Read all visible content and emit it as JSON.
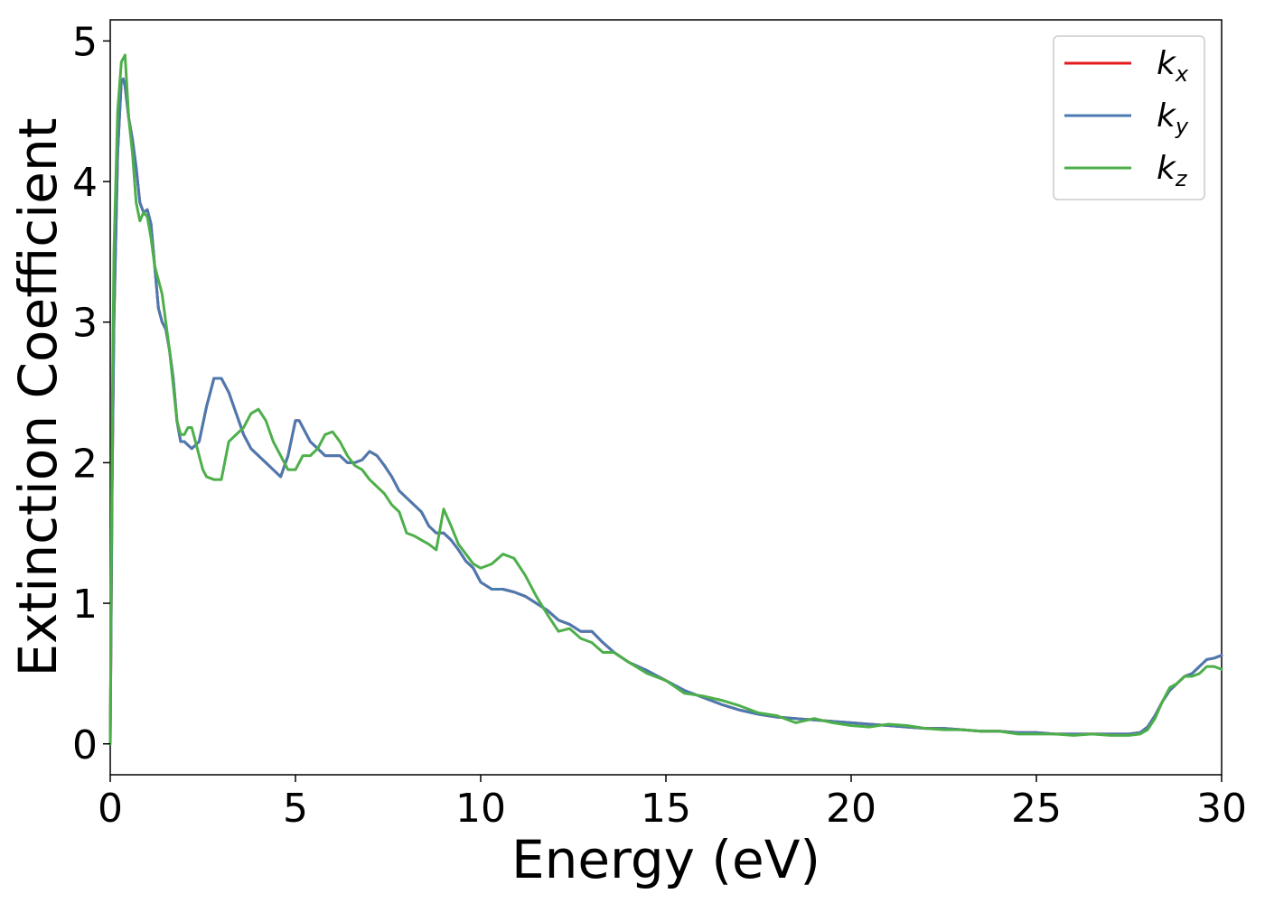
{
  "chart_data": {
    "type": "line",
    "xlabel": "Energy (eV)",
    "ylabel": "Extinction Coefficient",
    "xlim": [
      0,
      30
    ],
    "ylim": [
      -0.22,
      5.15
    ],
    "xticks": [
      0,
      5,
      10,
      15,
      20,
      25,
      30
    ],
    "yticks": [
      0,
      1,
      2,
      3,
      4,
      5
    ],
    "grid": false,
    "legend_position": "top-right",
    "series": [
      {
        "name": "k",
        "subscript": "x",
        "color": "#e41a1c",
        "x": [
          0,
          0.05,
          0.1,
          0.2,
          0.3,
          0.35,
          0.4,
          0.5,
          0.6,
          0.7,
          0.8,
          0.9,
          1.0,
          1.1,
          1.2,
          1.3,
          1.4,
          1.5,
          1.6,
          1.7,
          1.8,
          1.9,
          2.0,
          2.2,
          2.4,
          2.6,
          2.8,
          3.0,
          3.2,
          3.4,
          3.6,
          3.8,
          4.0,
          4.2,
          4.4,
          4.6,
          4.8,
          5.0,
          5.1,
          5.2,
          5.4,
          5.6,
          5.8,
          6.0,
          6.2,
          6.4,
          6.6,
          6.8,
          7.0,
          7.2,
          7.4,
          7.6,
          7.8,
          8.0,
          8.2,
          8.4,
          8.6,
          8.8,
          9.0,
          9.2,
          9.4,
          9.6,
          9.8,
          10.0,
          10.3,
          10.6,
          10.9,
          11.2,
          11.5,
          11.8,
          12.1,
          12.4,
          12.7,
          13.0,
          13.3,
          13.6,
          14.0,
          14.5,
          15.0,
          15.5,
          16.0,
          16.5,
          17.0,
          17.5,
          18.0,
          18.5,
          19.0,
          19.5,
          20.0,
          20.5,
          21.0,
          21.5,
          22.0,
          22.5,
          23.0,
          23.5,
          24.0,
          24.5,
          25.0,
          25.5,
          26.0,
          26.5,
          27.0,
          27.5,
          27.8,
          28.0,
          28.2,
          28.4,
          28.6,
          28.8,
          29.0,
          29.2,
          29.4,
          29.6,
          29.8,
          30.0
        ],
        "y": [
          0.0,
          1.8,
          3.0,
          4.2,
          4.72,
          4.73,
          4.68,
          4.45,
          4.3,
          4.1,
          3.85,
          3.78,
          3.8,
          3.7,
          3.4,
          3.1,
          3.0,
          2.95,
          2.8,
          2.6,
          2.3,
          2.15,
          2.15,
          2.1,
          2.15,
          2.4,
          2.6,
          2.6,
          2.5,
          2.35,
          2.2,
          2.1,
          2.05,
          2.0,
          1.95,
          1.9,
          2.05,
          2.3,
          2.3,
          2.25,
          2.15,
          2.1,
          2.05,
          2.05,
          2.05,
          2.0,
          2.0,
          2.02,
          2.08,
          2.05,
          1.98,
          1.9,
          1.8,
          1.75,
          1.7,
          1.65,
          1.55,
          1.5,
          1.5,
          1.45,
          1.38,
          1.3,
          1.25,
          1.15,
          1.1,
          1.1,
          1.08,
          1.05,
          1.0,
          0.95,
          0.88,
          0.85,
          0.8,
          0.8,
          0.72,
          0.65,
          0.58,
          0.52,
          0.45,
          0.38,
          0.33,
          0.28,
          0.24,
          0.21,
          0.19,
          0.18,
          0.17,
          0.16,
          0.15,
          0.14,
          0.13,
          0.12,
          0.11,
          0.11,
          0.1,
          0.09,
          0.09,
          0.08,
          0.08,
          0.07,
          0.07,
          0.07,
          0.07,
          0.07,
          0.08,
          0.12,
          0.2,
          0.3,
          0.38,
          0.43,
          0.48,
          0.5,
          0.55,
          0.6,
          0.61,
          0.63
        ]
      },
      {
        "name": "k",
        "subscript": "y",
        "color": "#4a7ab0",
        "x": [
          0,
          0.05,
          0.1,
          0.2,
          0.3,
          0.35,
          0.4,
          0.5,
          0.6,
          0.7,
          0.8,
          0.9,
          1.0,
          1.1,
          1.2,
          1.3,
          1.4,
          1.5,
          1.6,
          1.7,
          1.8,
          1.9,
          2.0,
          2.2,
          2.4,
          2.6,
          2.8,
          3.0,
          3.2,
          3.4,
          3.6,
          3.8,
          4.0,
          4.2,
          4.4,
          4.6,
          4.8,
          5.0,
          5.1,
          5.2,
          5.4,
          5.6,
          5.8,
          6.0,
          6.2,
          6.4,
          6.6,
          6.8,
          7.0,
          7.2,
          7.4,
          7.6,
          7.8,
          8.0,
          8.2,
          8.4,
          8.6,
          8.8,
          9.0,
          9.2,
          9.4,
          9.6,
          9.8,
          10.0,
          10.3,
          10.6,
          10.9,
          11.2,
          11.5,
          11.8,
          12.1,
          12.4,
          12.7,
          13.0,
          13.3,
          13.6,
          14.0,
          14.5,
          15.0,
          15.5,
          16.0,
          16.5,
          17.0,
          17.5,
          18.0,
          18.5,
          19.0,
          19.5,
          20.0,
          20.5,
          21.0,
          21.5,
          22.0,
          22.5,
          23.0,
          23.5,
          24.0,
          24.5,
          25.0,
          25.5,
          26.0,
          26.5,
          27.0,
          27.5,
          27.8,
          28.0,
          28.2,
          28.4,
          28.6,
          28.8,
          29.0,
          29.2,
          29.4,
          29.6,
          29.8,
          30.0
        ],
        "y": [
          0.0,
          1.8,
          3.0,
          4.2,
          4.72,
          4.73,
          4.68,
          4.45,
          4.3,
          4.1,
          3.85,
          3.78,
          3.8,
          3.7,
          3.4,
          3.1,
          3.0,
          2.95,
          2.8,
          2.6,
          2.3,
          2.15,
          2.15,
          2.1,
          2.15,
          2.4,
          2.6,
          2.6,
          2.5,
          2.35,
          2.2,
          2.1,
          2.05,
          2.0,
          1.95,
          1.9,
          2.05,
          2.3,
          2.3,
          2.25,
          2.15,
          2.1,
          2.05,
          2.05,
          2.05,
          2.0,
          2.0,
          2.02,
          2.08,
          2.05,
          1.98,
          1.9,
          1.8,
          1.75,
          1.7,
          1.65,
          1.55,
          1.5,
          1.5,
          1.45,
          1.38,
          1.3,
          1.25,
          1.15,
          1.1,
          1.1,
          1.08,
          1.05,
          1.0,
          0.95,
          0.88,
          0.85,
          0.8,
          0.8,
          0.72,
          0.65,
          0.58,
          0.52,
          0.45,
          0.38,
          0.33,
          0.28,
          0.24,
          0.21,
          0.19,
          0.18,
          0.17,
          0.16,
          0.15,
          0.14,
          0.13,
          0.12,
          0.11,
          0.11,
          0.1,
          0.09,
          0.09,
          0.08,
          0.08,
          0.07,
          0.07,
          0.07,
          0.07,
          0.07,
          0.08,
          0.12,
          0.2,
          0.3,
          0.38,
          0.43,
          0.48,
          0.5,
          0.55,
          0.6,
          0.61,
          0.63
        ]
      },
      {
        "name": "k",
        "subscript": "z",
        "color": "#4daf4a",
        "x": [
          0,
          0.05,
          0.1,
          0.2,
          0.3,
          0.4,
          0.5,
          0.6,
          0.7,
          0.8,
          0.9,
          1.0,
          1.1,
          1.2,
          1.3,
          1.4,
          1.5,
          1.6,
          1.7,
          1.8,
          1.9,
          2.0,
          2.1,
          2.2,
          2.3,
          2.4,
          2.5,
          2.6,
          2.8,
          3.0,
          3.2,
          3.4,
          3.6,
          3.8,
          4.0,
          4.2,
          4.4,
          4.6,
          4.8,
          5.0,
          5.2,
          5.4,
          5.6,
          5.8,
          6.0,
          6.2,
          6.4,
          6.6,
          6.8,
          7.0,
          7.2,
          7.4,
          7.6,
          7.8,
          8.0,
          8.2,
          8.4,
          8.6,
          8.8,
          9.0,
          9.2,
          9.4,
          9.6,
          9.8,
          10.0,
          10.3,
          10.6,
          10.9,
          11.2,
          11.5,
          11.8,
          12.1,
          12.4,
          12.7,
          13.0,
          13.3,
          13.6,
          14.0,
          14.5,
          15.0,
          15.5,
          16.0,
          16.5,
          17.0,
          17.5,
          18.0,
          18.5,
          19.0,
          19.5,
          20.0,
          20.5,
          21.0,
          21.5,
          22.0,
          22.5,
          23.0,
          23.5,
          24.0,
          24.5,
          25.0,
          25.5,
          26.0,
          26.5,
          27.0,
          27.5,
          27.8,
          28.0,
          28.2,
          28.4,
          28.6,
          28.8,
          29.0,
          29.2,
          29.4,
          29.6,
          29.8,
          30.0
        ],
        "y": [
          0.0,
          2.2,
          3.5,
          4.5,
          4.85,
          4.9,
          4.45,
          4.2,
          3.85,
          3.72,
          3.78,
          3.75,
          3.6,
          3.4,
          3.3,
          3.2,
          3.0,
          2.8,
          2.55,
          2.3,
          2.2,
          2.2,
          2.25,
          2.25,
          2.15,
          2.05,
          1.95,
          1.9,
          1.88,
          1.88,
          2.15,
          2.2,
          2.25,
          2.35,
          2.38,
          2.3,
          2.15,
          2.05,
          1.95,
          1.95,
          2.05,
          2.05,
          2.1,
          2.2,
          2.22,
          2.15,
          2.05,
          1.98,
          1.95,
          1.88,
          1.83,
          1.78,
          1.7,
          1.65,
          1.5,
          1.48,
          1.45,
          1.42,
          1.38,
          1.67,
          1.55,
          1.42,
          1.35,
          1.28,
          1.25,
          1.28,
          1.35,
          1.32,
          1.2,
          1.05,
          0.92,
          0.8,
          0.82,
          0.75,
          0.72,
          0.65,
          0.65,
          0.58,
          0.5,
          0.45,
          0.36,
          0.34,
          0.31,
          0.27,
          0.22,
          0.2,
          0.15,
          0.18,
          0.15,
          0.13,
          0.12,
          0.14,
          0.13,
          0.11,
          0.1,
          0.1,
          0.09,
          0.09,
          0.07,
          0.07,
          0.07,
          0.06,
          0.07,
          0.06,
          0.06,
          0.07,
          0.1,
          0.18,
          0.3,
          0.4,
          0.43,
          0.48,
          0.48,
          0.5,
          0.55,
          0.55,
          0.53
        ]
      }
    ]
  }
}
